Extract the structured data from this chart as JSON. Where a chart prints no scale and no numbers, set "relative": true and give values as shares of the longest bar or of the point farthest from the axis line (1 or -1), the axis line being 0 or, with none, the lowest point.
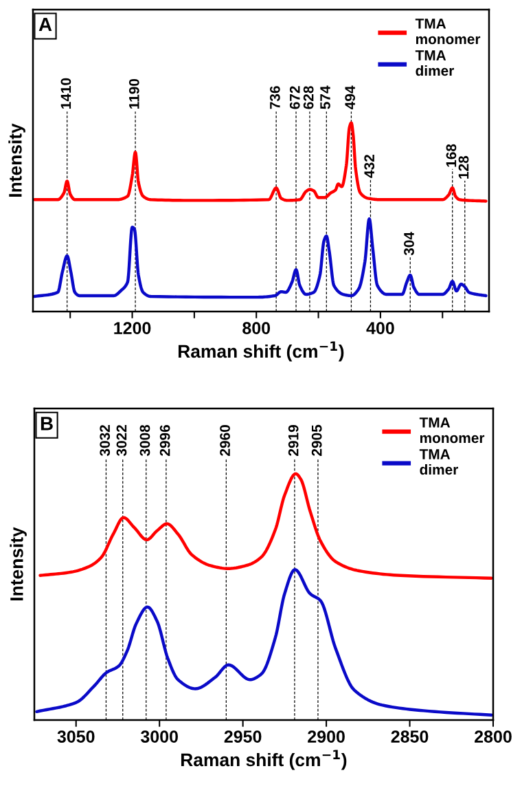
{
  "chart_data": [
    {
      "type": "line",
      "xlabel": "Raman shift (cm$^{−1}$)",
      "ylabel": "Intensity",
      "relative": true,
      "tick_labels": "x",
      "legend": "top right",
      "annotations": [
        "A"
      ],
      "xlim": [
        1520,
        50
      ],
      "xticks": [
        {
          "value": 1400,
          "label": null
        },
        1200,
        {
          "value": 1000,
          "label": null
        },
        800,
        {
          "value": 600,
          "label": null
        },
        400,
        {
          "value": 200,
          "label": null
        }
      ],
      "series": [
        {
          "name": "TMA\nmonomer",
          "color": "#ff0000",
          "x": [
            1515,
            1440,
            1420,
            1410,
            1400,
            1385,
            1250,
            1215,
            1200,
            1190,
            1180,
            1165,
            1140,
            1000,
            760,
            736,
            720,
            700,
            660,
            640,
            628,
            615,
            600,
            580,
            560,
            545,
            536,
            525,
            510,
            500,
            494,
            488,
            480,
            465,
            440,
            400,
            200,
            180,
            168,
            158,
            145,
            60
          ],
          "values": [
            0.593,
            0.593,
            0.629,
            0.691,
            0.622,
            0.593,
            0.593,
            0.611,
            0.72,
            0.844,
            0.684,
            0.611,
            0.593,
            0.589,
            0.593,
            0.655,
            0.6,
            0.589,
            0.593,
            0.636,
            0.647,
            0.64,
            0.604,
            0.604,
            0.629,
            0.644,
            0.676,
            0.662,
            0.775,
            0.975,
            1.0,
            0.938,
            0.756,
            0.629,
            0.6,
            0.593,
            0.593,
            0.618,
            0.655,
            0.611,
            0.593,
            0.585
          ]
        },
        {
          "name": "TMA\ndimer",
          "color": "#0a0ac8",
          "x": [
            1515,
            1440,
            1425,
            1410,
            1398,
            1385,
            1370,
            1260,
            1235,
            1215,
            1200,
            1193,
            1180,
            1165,
            1140,
            800,
            740,
            720,
            705,
            685,
            672,
            660,
            640,
            615,
            595,
            582,
            574,
            565,
            550,
            520,
            494,
            470,
            450,
            436,
            425,
            410,
            380,
            330,
            315,
            304,
            292,
            275,
            200,
            180,
            168,
            155,
            140,
            128,
            115,
            90,
            60
          ],
          "values": [
            0.08,
            0.102,
            0.211,
            0.295,
            0.211,
            0.102,
            0.084,
            0.084,
            0.113,
            0.156,
            0.447,
            0.437,
            0.193,
            0.102,
            0.08,
            0.076,
            0.084,
            0.105,
            0.102,
            0.156,
            0.222,
            0.138,
            0.091,
            0.102,
            0.193,
            0.375,
            0.4,
            0.32,
            0.138,
            0.091,
            0.084,
            0.12,
            0.265,
            0.491,
            0.338,
            0.138,
            0.091,
            0.091,
            0.156,
            0.193,
            0.127,
            0.091,
            0.091,
            0.12,
            0.16,
            0.109,
            0.145,
            0.132,
            0.102,
            0.091,
            0.084
          ]
        }
      ],
      "ref_lines": [
        {
          "axis": "x",
          "value": 1410,
          "label": "1410",
          "color": "#000000",
          "line_style": "dashed"
        },
        {
          "axis": "x",
          "value": 1190,
          "label": "1190",
          "color": "#000000",
          "line_style": "dashed"
        },
        {
          "axis": "x",
          "value": 736,
          "label": "736",
          "color": "#000000",
          "line_style": "dashed"
        },
        {
          "axis": "x",
          "value": 672,
          "label": "672",
          "color": "#000000",
          "line_style": "dashed"
        },
        {
          "axis": "x",
          "value": 628,
          "label": "628",
          "color": "#000000",
          "line_style": "dashed"
        },
        {
          "axis": "x",
          "value": 574,
          "label": "574",
          "color": "#000000",
          "line_style": "dashed"
        },
        {
          "axis": "x",
          "value": 494,
          "label": "494",
          "color": "#000000",
          "line_style": "dashed"
        },
        {
          "axis": "x",
          "value": 432,
          "label": "432",
          "color": "#000000",
          "line_style": "dashed"
        },
        {
          "axis": "x",
          "value": 304,
          "label": "304",
          "color": "#000000",
          "line_style": "dashed"
        },
        {
          "axis": "x",
          "value": 168,
          "label": "168",
          "color": "#000000",
          "line_style": "dashed"
        },
        {
          "axis": "x",
          "value": 128,
          "label": "128",
          "color": "#000000",
          "line_style": "dashed"
        }
      ]
    },
    {
      "type": "line",
      "xlabel": "Raman shift (cm$^{−1}$)",
      "ylabel": "Intensity",
      "relative": true,
      "tick_labels": "x",
      "legend": "top right",
      "annotations": [
        "B"
      ],
      "xlim": [
        3075,
        2800
      ],
      "xticks": [
        3050,
        3000,
        2950,
        2900,
        2850,
        2800
      ],
      "series": [
        {
          "name": "TMA\nmonomer",
          "color": "#ff0000",
          "x": [
            3071.5,
            3052.8,
            3041.7,
            3034.7,
            3027.7,
            3021.5,
            3015.3,
            3007.6,
            3001.4,
            2995.5,
            2988.9,
            2980.6,
            2969.4,
            2959,
            2947.2,
            2938.9,
            2930.5,
            2925,
            2918.3,
            2915.3,
            2909.7,
            2903.5,
            2894.4,
            2880.5,
            2855.5,
            2801
          ],
          "values": [
            0.587,
            0.601,
            0.625,
            0.662,
            0.755,
            0.822,
            0.783,
            0.732,
            0.769,
            0.797,
            0.755,
            0.671,
            0.627,
            0.615,
            0.629,
            0.662,
            0.774,
            0.913,
            1.0,
            0.978,
            0.848,
            0.727,
            0.643,
            0.606,
            0.587,
            0.576
          ]
        },
        {
          "name": "TMA\ndimer",
          "color": "#0a0ac8",
          "x": [
            3073.6,
            3050,
            3038.9,
            3031.9,
            3024.3,
            3019.4,
            3013.9,
            3007.2,
            3001.4,
            2995.1,
            2988.9,
            2978.5,
            2966.7,
            2958.6,
            2945.8,
            2938.9,
            2930.5,
            2925,
            2918.8,
            2909.7,
            2903.5,
            2894.4,
            2883.3,
            2866.7,
            2841.7,
            2801
          ],
          "values": [
            0.034,
            0.071,
            0.14,
            0.192,
            0.22,
            0.28,
            0.392,
            0.459,
            0.401,
            0.252,
            0.164,
            0.127,
            0.173,
            0.224,
            0.164,
            0.187,
            0.336,
            0.513,
            0.611,
            0.513,
            0.485,
            0.29,
            0.122,
            0.061,
            0.038,
            0.02
          ]
        }
      ],
      "ref_lines": [
        {
          "axis": "x",
          "value": 3032,
          "label": "3032",
          "color": "#000000",
          "line_style": "dashed"
        },
        {
          "axis": "x",
          "value": 3022,
          "label": "3022",
          "color": "#000000",
          "line_style": "dashed"
        },
        {
          "axis": "x",
          "value": 3008,
          "label": "3008",
          "color": "#000000",
          "line_style": "dashed"
        },
        {
          "axis": "x",
          "value": 2996,
          "label": "2996",
          "color": "#000000",
          "line_style": "dashed"
        },
        {
          "axis": "x",
          "value": 2960,
          "label": "2960",
          "color": "#000000",
          "line_style": "dashed"
        },
        {
          "axis": "x",
          "value": 2919,
          "label": "2919",
          "color": "#000000",
          "line_style": "dashed"
        },
        {
          "axis": "x",
          "value": 2905,
          "label": "2905",
          "color": "#000000",
          "line_style": "dashed"
        }
      ]
    }
  ]
}
